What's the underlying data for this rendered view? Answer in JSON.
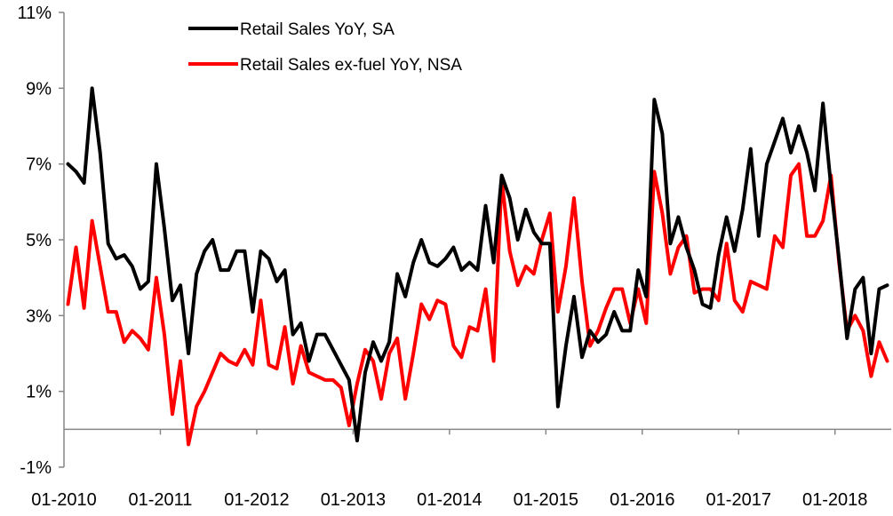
{
  "chart_data": {
    "type": "line",
    "title": "",
    "xlabel": "",
    "ylabel": "",
    "ylim": [
      -1,
      11
    ],
    "y_tick_labels": [
      "11%",
      "9%",
      "7%",
      "5%",
      "3%",
      "1%",
      "-1%"
    ],
    "y_ticks": [
      11,
      9,
      7,
      5,
      3,
      1,
      -1
    ],
    "x_tick_labels": [
      "01-2010",
      "01-2011",
      "01-2012",
      "01-2013",
      "01-2014",
      "01-2015",
      "01-2016",
      "01-2017",
      "01-2018"
    ],
    "x_start": "2010-01",
    "x_end": "2018-06",
    "grid": false,
    "legend_position": "top-center",
    "series": [
      {
        "name": "Retail Sales YoY, SA",
        "color": "#000000",
        "values": [
          7.0,
          6.8,
          6.5,
          9.0,
          7.3,
          4.9,
          4.5,
          4.6,
          4.3,
          3.7,
          3.9,
          7.0,
          5.3,
          3.4,
          3.8,
          2.0,
          4.1,
          4.7,
          5.0,
          4.2,
          4.2,
          4.7,
          4.7,
          3.1,
          4.7,
          4.5,
          3.9,
          4.2,
          2.5,
          2.8,
          1.8,
          2.5,
          2.5,
          2.1,
          1.7,
          1.3,
          -0.3,
          1.5,
          2.3,
          1.8,
          2.3,
          4.1,
          3.5,
          4.4,
          5.0,
          4.4,
          4.3,
          4.5,
          4.8,
          4.2,
          4.4,
          4.2,
          5.9,
          4.4,
          6.7,
          6.1,
          5.0,
          5.8,
          5.2,
          4.9,
          4.9,
          0.6,
          2.2,
          3.5,
          1.9,
          2.6,
          2.3,
          2.5,
          3.1,
          2.6,
          2.6,
          4.2,
          3.5,
          8.7,
          7.8,
          4.9,
          5.6,
          4.8,
          4.2,
          3.3,
          3.2,
          4.6,
          5.6,
          4.7,
          5.8,
          7.4,
          5.1,
          7.0,
          7.6,
          8.2,
          7.3,
          8.0,
          7.3,
          6.3,
          8.6,
          6.4,
          4.5,
          2.4,
          3.7,
          4.0,
          2.0,
          3.7,
          3.8
        ]
      },
      {
        "name": "Retail Sales ex-fuel YoY, NSA",
        "color": "#ff0000",
        "values": [
          3.3,
          4.8,
          3.2,
          5.5,
          4.3,
          3.1,
          3.1,
          2.3,
          2.6,
          2.4,
          2.1,
          4.0,
          2.5,
          0.4,
          1.8,
          -0.4,
          0.6,
          1.0,
          1.5,
          2.0,
          1.8,
          1.7,
          2.1,
          1.7,
          3.4,
          1.7,
          1.6,
          2.7,
          1.2,
          2.2,
          1.5,
          1.4,
          1.3,
          1.3,
          1.1,
          0.1,
          1.2,
          2.1,
          1.8,
          0.8,
          2.0,
          2.4,
          0.8,
          2.0,
          3.3,
          2.9,
          3.4,
          3.3,
          2.2,
          1.9,
          2.7,
          2.6,
          3.7,
          1.8,
          6.6,
          4.7,
          3.8,
          4.3,
          4.1,
          5.0,
          5.7,
          3.1,
          4.3,
          6.1,
          3.9,
          2.2,
          2.6,
          3.2,
          3.7,
          3.7,
          2.8,
          3.7,
          2.8,
          6.8,
          5.7,
          4.1,
          4.8,
          5.1,
          3.6,
          3.7,
          3.7,
          3.4,
          4.9,
          3.4,
          3.1,
          3.9,
          3.8,
          3.7,
          5.1,
          4.8,
          6.7,
          7.0,
          5.1,
          5.1,
          5.5,
          6.7,
          4.4,
          2.6,
          3.0,
          2.6,
          1.4,
          2.3,
          1.8
        ]
      }
    ]
  }
}
